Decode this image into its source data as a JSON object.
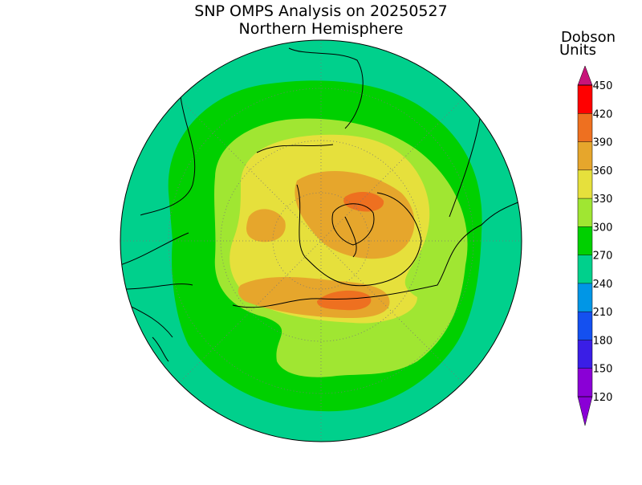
{
  "title": "SNP OMPS Analysis on 20250527",
  "subtitle": "Northern Hemisphere",
  "colorbar": {
    "label_lines": [
      "Dobson",
      "Units"
    ],
    "levels": [
      120,
      150,
      180,
      210,
      240,
      270,
      300,
      330,
      360,
      390,
      420,
      450
    ],
    "colors": [
      "#8a00d6",
      "#8a00d6",
      "#3a1ee6",
      "#1450f0",
      "#0096e6",
      "#00d08c",
      "#00d000",
      "#a0e632",
      "#e6e03c",
      "#e6a62c",
      "#ee7020",
      "#ff0000",
      "#c8147a"
    ]
  }
}
